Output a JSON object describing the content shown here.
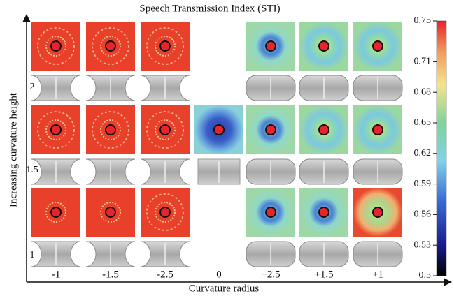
{
  "title": "Speech Transmission Index (STI)",
  "y_axis_label": "Increasing curvature height",
  "x_axis_label": "Curvature radius",
  "columns": [
    "-1",
    "-1.5",
    "-2.5",
    "0",
    "+2.5",
    "+1.5",
    "+1"
  ],
  "rows": [
    "2",
    "1.5",
    "1"
  ],
  "colorbar": {
    "lim": [
      0.5,
      0.75
    ],
    "ticks": [
      0.75,
      0.71,
      0.68,
      0.65,
      0.62,
      0.59,
      0.56,
      0.53,
      0.5
    ]
  }
}
